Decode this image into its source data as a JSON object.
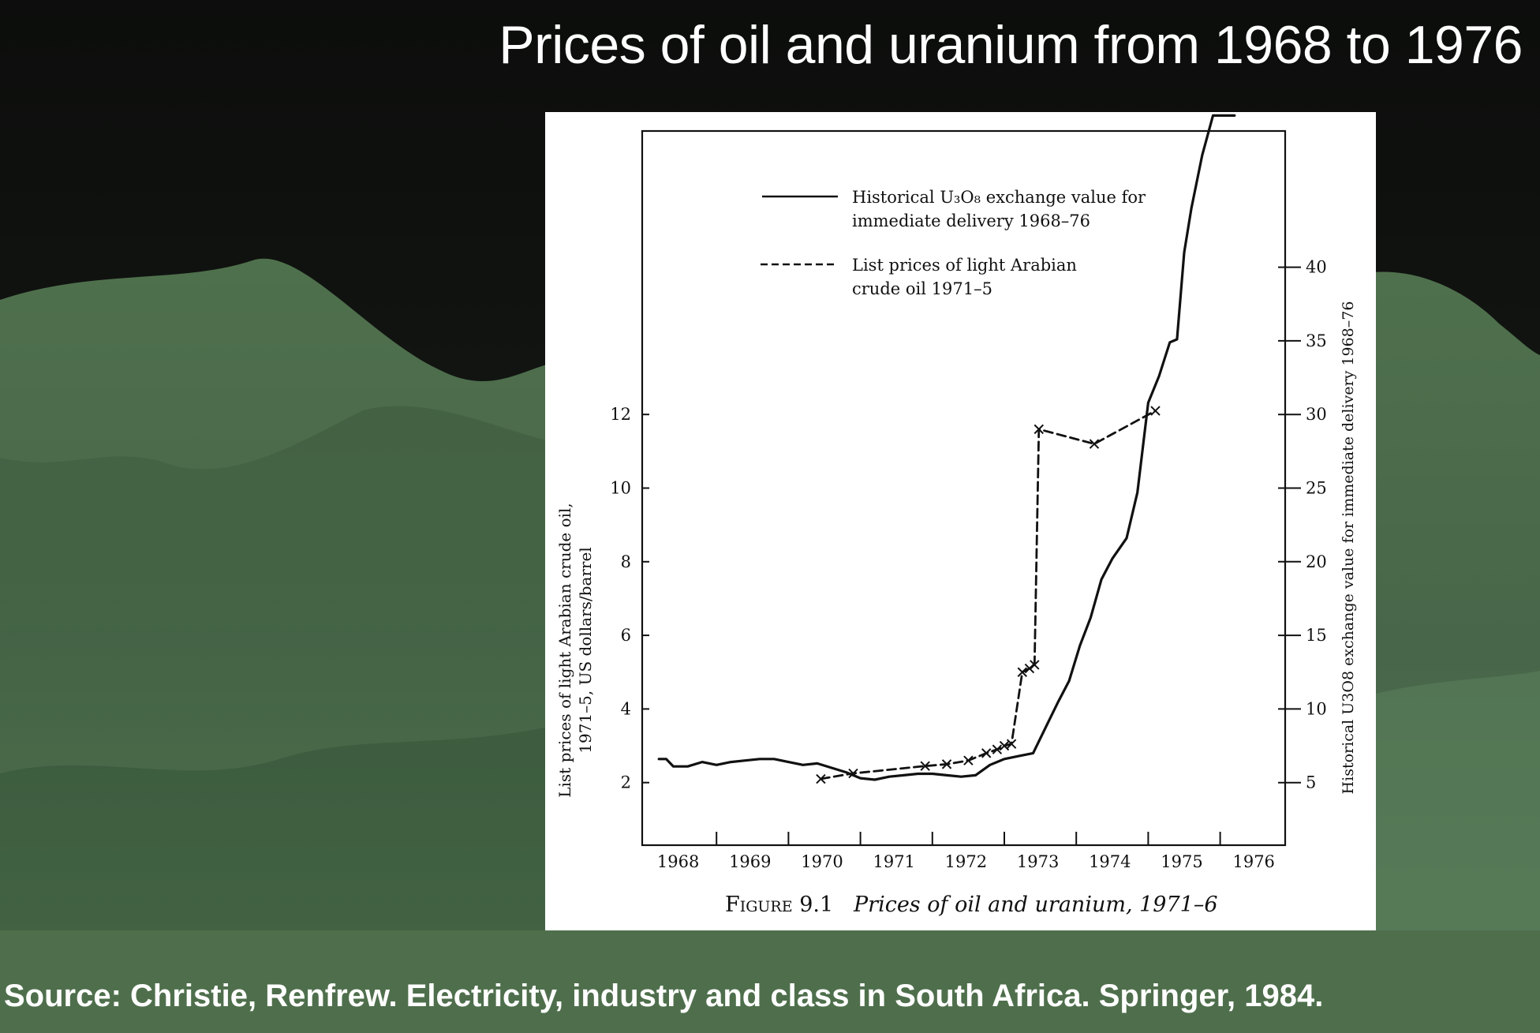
{
  "slide": {
    "title": "Prices of oil and uranium from 1968 to 1976",
    "source": "Source: Christie, Renfrew. Electricity, industry and class in South Africa. Springer, 1984."
  },
  "colors": {
    "background_dark": "#0d0f0d",
    "hill_green": "#4e6e4b",
    "panel": "#ffffff",
    "ink": "#111111"
  },
  "figure": {
    "label": "Figure 9.1",
    "caption": "Prices of oil and uranium, 1971–6"
  },
  "chart_data": {
    "type": "line",
    "x_axis": {
      "ticks": [
        "1968",
        "1969",
        "1970",
        "1971",
        "1972",
        "1973",
        "1974",
        "1975",
        "1976"
      ],
      "range": [
        1968,
        1977
      ]
    },
    "y_left": {
      "label_line1": "List prices of light Arabian crude oil,",
      "label_line2": "1971–5, US dollars/barrel",
      "ticks": [
        2,
        4,
        6,
        8,
        10,
        12
      ],
      "range": [
        0.3,
        19.7
      ]
    },
    "y_right": {
      "label": "Historical U3O8 exchange value for immediate delivery 1968–76",
      "ticks": [
        5,
        10,
        15,
        20,
        25,
        30,
        35,
        40
      ],
      "range": [
        0.75,
        49.25
      ]
    },
    "legend": {
      "placement": "top-left",
      "items": [
        {
          "line": "solid",
          "text_line1": "Historical U₃O₈ exchange value for",
          "text_line2": "immediate delivery 1968–76"
        },
        {
          "line": "dashed",
          "text_line1": "List prices of light Arabian",
          "text_line2": "crude oil 1971–5"
        }
      ]
    },
    "series": [
      {
        "name": "Historical U₃O₈ exchange value for immediate delivery 1968–76",
        "axis": "right",
        "style": "solid",
        "x": [
          1968.2,
          1968.3,
          1968.4,
          1968.6,
          1968.8,
          1969.0,
          1969.2,
          1969.4,
          1969.6,
          1969.8,
          1970.0,
          1970.2,
          1970.4,
          1970.6,
          1970.8,
          1971.0,
          1971.2,
          1971.4,
          1971.6,
          1971.8,
          1972.0,
          1972.2,
          1972.4,
          1972.6,
          1972.8,
          1973.0,
          1973.2,
          1973.4,
          1973.6,
          1973.75,
          1973.9,
          1974.05,
          1974.2,
          1974.35,
          1974.5,
          1974.7,
          1974.85,
          1975.0,
          1975.15,
          1975.3,
          1975.4,
          1975.5,
          1975.6,
          1975.75,
          1975.9,
          1976.0,
          1976.2
        ],
        "y": [
          6.6,
          6.6,
          6.1,
          6.1,
          6.4,
          6.2,
          6.4,
          6.5,
          6.6,
          6.6,
          6.4,
          6.2,
          6.3,
          6.0,
          5.7,
          5.3,
          5.2,
          5.4,
          5.5,
          5.6,
          5.6,
          5.5,
          5.4,
          5.5,
          6.2,
          6.6,
          6.8,
          7.0,
          9.0,
          10.5,
          11.9,
          14.3,
          16.2,
          18.8,
          20.2,
          21.6,
          24.7,
          30.8,
          32.6,
          34.9,
          35.1,
          41.0,
          44.0,
          47.6,
          50.3,
          50.3,
          50.3
        ]
      },
      {
        "name": "List prices of light Arabian crude oil 1971–5",
        "axis": "left",
        "style": "dashed",
        "marker": "x",
        "x": [
          1970.45,
          1970.9,
          1971.9,
          1972.2,
          1972.5,
          1972.75,
          1972.9,
          1973.0,
          1973.1,
          1973.25,
          1973.35,
          1973.42,
          1973.48,
          1974.25,
          1975.1
        ],
        "y": [
          2.1,
          2.25,
          2.45,
          2.5,
          2.6,
          2.8,
          2.9,
          3.0,
          3.05,
          5.0,
          5.1,
          5.2,
          11.6,
          11.2,
          12.1
        ]
      }
    ]
  }
}
